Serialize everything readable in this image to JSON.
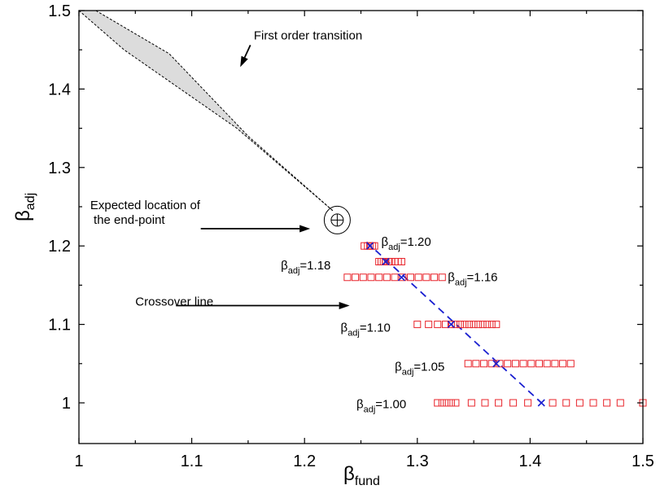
{
  "chart_data": {
    "type": "scatter",
    "xlabel": "β",
    "xlabel_sub": "fund",
    "ylabel": "β",
    "ylabel_sub": "adj",
    "xlim": [
      1.0,
      1.5
    ],
    "ylim": [
      0.95,
      1.5
    ],
    "x_ticks": [
      1.0,
      1.1,
      1.2,
      1.3,
      1.4,
      1.5
    ],
    "x_tick_labels": [
      "1",
      "1.1",
      "1.2",
      "1.3",
      "1.4",
      "1.5"
    ],
    "y_ticks": [
      1.0,
      1.1,
      1.2,
      1.3,
      1.4,
      1.5
    ],
    "y_tick_labels": [
      "1",
      "1.1",
      "1.2",
      "1.3",
      "1.4",
      "1.5"
    ],
    "grid": false,
    "first_order_region": {
      "upper_boundary": [
        [
          1.015,
          1.5
        ],
        [
          1.08,
          1.445
        ],
        [
          1.15,
          1.34
        ],
        [
          1.225,
          1.245
        ]
      ],
      "lower_boundary": [
        [
          1.0,
          1.5
        ],
        [
          1.04,
          1.45
        ],
        [
          1.14,
          1.35
        ],
        [
          1.225,
          1.245
        ]
      ],
      "fill_color": "#dcdcdc"
    },
    "endpoint": {
      "x": 1.229,
      "y": 1.233,
      "symbol": "⊕"
    },
    "series": [
      {
        "marker": "square",
        "color": "#e8232a",
        "groups": [
          {
            "y": 1.2,
            "x": [
              1.253,
              1.256,
              1.258,
              1.26,
              1.262
            ]
          },
          {
            "y": 1.18,
            "x": [
              1.266,
              1.268,
              1.27,
              1.272,
              1.275,
              1.277,
              1.28,
              1.283,
              1.286
            ]
          },
          {
            "y": 1.16,
            "x": [
              1.238,
              1.245,
              1.252,
              1.259,
              1.266,
              1.273,
              1.28,
              1.287,
              1.294,
              1.301,
              1.308,
              1.315,
              1.322
            ]
          },
          {
            "y": 1.1,
            "x": [
              1.3,
              1.31,
              1.318,
              1.325,
              1.33,
              1.334,
              1.338,
              1.342,
              1.346,
              1.35,
              1.354,
              1.358,
              1.362,
              1.366,
              1.37
            ]
          },
          {
            "y": 1.05,
            "x": [
              1.345,
              1.352,
              1.359,
              1.366,
              1.373,
              1.38,
              1.387,
              1.394,
              1.401,
              1.408,
              1.415,
              1.422,
              1.429,
              1.436
            ]
          },
          {
            "y": 1.0,
            "x": [
              1.318,
              1.322,
              1.326,
              1.33,
              1.334,
              1.348,
              1.36,
              1.372,
              1.385,
              1.398,
              1.42,
              1.432,
              1.444,
              1.456,
              1.468,
              1.48,
              1.5
            ]
          }
        ]
      },
      {
        "marker": "x",
        "color": "#1a1fd0",
        "points": [
          [
            1.258,
            1.2
          ],
          [
            1.272,
            1.18
          ],
          [
            1.286,
            1.16
          ],
          [
            1.33,
            1.1
          ],
          [
            1.37,
            1.05
          ],
          [
            1.41,
            1.0
          ]
        ]
      }
    ],
    "crossover_line": {
      "x": [
        1.255,
        1.41
      ],
      "y": [
        1.205,
        1.0
      ],
      "color": "#1a1fd0"
    },
    "annotations": [
      {
        "id": "first-order",
        "text": "First order transition",
        "text_x": 1.155,
        "text_y": 1.463,
        "arrow_from": [
          1.152,
          1.456
        ],
        "arrow_to": [
          1.143,
          1.428
        ]
      },
      {
        "id": "expected-endpoint",
        "lines": [
          "Expected location of",
          " the end-point"
        ],
        "text_x": 1.01,
        "text_y": 1.247,
        "arrow_from": [
          1.108,
          1.222
        ],
        "arrow_to": [
          1.205,
          1.222
        ]
      },
      {
        "id": "crossover",
        "text": "Crossover line",
        "text_x": 1.05,
        "text_y": 1.124,
        "arrow_from": [
          1.086,
          1.124
        ],
        "arrow_to": [
          1.24,
          1.124
        ]
      }
    ],
    "point_labels": [
      {
        "base": "β",
        "sub": "adj",
        "value": "=1.20",
        "x": 1.268,
        "y": 1.2
      },
      {
        "base": "β",
        "sub": "adj",
        "value": "=1.18",
        "x": 1.179,
        "y": 1.17
      },
      {
        "base": "β",
        "sub": "adj",
        "value": "=1.16",
        "x": 1.327,
        "y": 1.155
      },
      {
        "base": "β",
        "sub": "adj",
        "value": "=1.10",
        "x": 1.232,
        "y": 1.091
      },
      {
        "base": "β",
        "sub": "adj",
        "value": "=1.05",
        "x": 1.28,
        "y": 1.041
      },
      {
        "base": "β",
        "sub": "adj",
        "value": "=1.00",
        "x": 1.246,
        "y": 0.993
      }
    ]
  }
}
